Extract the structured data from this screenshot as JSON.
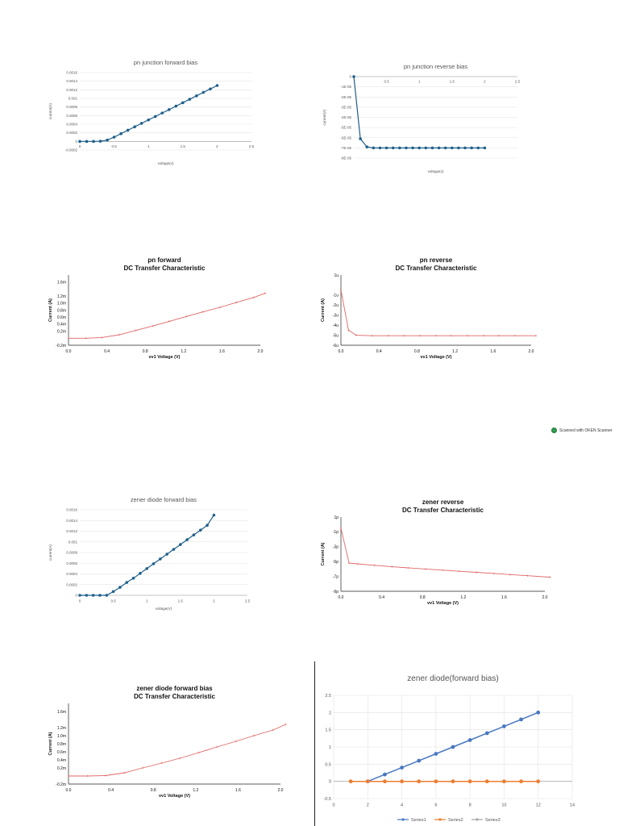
{
  "scanner": {
    "label": "Scanned with OKEN Scanner"
  },
  "chart_data": [
    {
      "id": "c1",
      "type": "line",
      "style": "excel",
      "title": [
        "pn junction forward bias"
      ],
      "xlabel": "voltage(v)",
      "ylabel": "current(A)",
      "xlim": [
        0,
        2.5
      ],
      "ylim": [
        -0.0002,
        0.0016
      ],
      "xticks": [
        0,
        0.5,
        1,
        1.5,
        2,
        2.5
      ],
      "xtick_labels": [
        "0",
        "0.5",
        "1",
        "1.5",
        "2",
        "2.5"
      ],
      "yticks": [
        -0.0002,
        0,
        0.0002,
        0.0004,
        0.0006,
        0.0008,
        0.001,
        0.0012,
        0.0014,
        0.0016
      ],
      "ytick_labels": [
        "-0.0002",
        "0",
        "0.0002",
        "0.0004",
        "0.0006",
        "0.0008",
        "0.001",
        "0.0012",
        "0.0014",
        "0.0016"
      ],
      "grid": true,
      "series": [
        {
          "color": "#1f5f8b",
          "x": [
            0,
            0.1,
            0.2,
            0.3,
            0.4,
            0.5,
            0.6,
            0.7,
            0.8,
            0.9,
            1.0,
            1.1,
            1.2,
            1.3,
            1.4,
            1.5,
            1.6,
            1.7,
            1.8,
            1.9,
            2.0
          ],
          "y": [
            0,
            0,
            0,
            5e-06,
            3e-05,
            0.0001,
            0.00018,
            0.00026,
            0.00034,
            0.00042,
            0.0005,
            0.00058,
            0.00066,
            0.00074,
            0.00082,
            0.0009,
            0.00098,
            0.00106,
            0.00114,
            0.00122,
            0.0013
          ]
        }
      ]
    },
    {
      "id": "c2",
      "type": "line",
      "style": "excel",
      "title": [
        "pn junction reverse bias"
      ],
      "xlabel": "voltage(v)",
      "ylabel": "current(A)",
      "xlim": [
        0,
        2.5
      ],
      "ylim": [
        -8,
        0
      ],
      "xticks": [
        0.5,
        1,
        1.5,
        2,
        2.5
      ],
      "xtick_labels": [
        "0.5",
        "1",
        "1.5",
        "2",
        "2.5"
      ],
      "x_axis_at_top": true,
      "yticks": [
        0,
        -1,
        -2,
        -3,
        -4,
        -5,
        -6,
        -7,
        -8
      ],
      "ytick_labels": [
        "0",
        "-1E-05",
        "-2E-05",
        "-3E-05",
        "-4E-05",
        "-5E-05",
        "-6E-05",
        "-7E-05",
        "-8E-05"
      ],
      "grid": true,
      "series": [
        {
          "color": "#1f5f8b",
          "x": [
            0,
            0.1,
            0.2,
            0.3,
            0.4,
            0.5,
            0.6,
            0.7,
            0.8,
            0.9,
            1.0,
            1.1,
            1.2,
            1.3,
            1.4,
            1.5,
            1.6,
            1.7,
            1.8,
            1.9,
            2.0
          ],
          "y": [
            0,
            -6.1,
            -6.9,
            -7,
            -7,
            -7,
            -7,
            -7,
            -7,
            -7,
            -7,
            -7,
            -7,
            -7,
            -7,
            -7,
            -7,
            -7,
            -7,
            -7,
            -7
          ]
        }
      ]
    },
    {
      "id": "c3",
      "type": "line",
      "style": "spice",
      "title": [
        "pn forward",
        "DC Transfer Characteristic"
      ],
      "xlabel": "vv1 Voltage (V)",
      "ylabel": "Current (A)",
      "xlim": [
        0,
        2.0
      ],
      "ylim": [
        -0.2,
        1.8
      ],
      "xticks": [
        0,
        0.4,
        0.8,
        1.2,
        1.6,
        2.0
      ],
      "xtick_labels": [
        "0.0",
        "0.4",
        "0.8",
        "1.2",
        "1.6",
        "2.0"
      ],
      "yticks": [
        -0.2,
        0.2,
        0.4,
        0.6,
        0.8,
        1.0,
        1.2,
        1.6
      ],
      "ytick_labels": [
        "-0.2m",
        "0.2m",
        "0.4m",
        "0.6m",
        "0.8m",
        "1.0m",
        "1.2m",
        "1.6m"
      ],
      "grid": false,
      "series": [
        {
          "color": "#e06666",
          "x": [
            0,
            0.18,
            0.35,
            0.53,
            0.7,
            0.88,
            1.05,
            1.23,
            1.4,
            1.58,
            1.75,
            1.93,
            2.05
          ],
          "y": [
            0,
            0,
            0.02,
            0.1,
            0.22,
            0.35,
            0.48,
            0.62,
            0.75,
            0.88,
            1.02,
            1.16,
            1.28
          ]
        }
      ]
    },
    {
      "id": "c4",
      "type": "line",
      "style": "spice",
      "title": [
        "pn reverse",
        "DC Transfer Characteristic"
      ],
      "xlabel": "vv1 Voltage (V)",
      "ylabel": "Current (A)",
      "xlim": [
        0,
        2.0
      ],
      "ylim": [
        -6,
        1
      ],
      "xticks": [
        0,
        0.4,
        0.8,
        1.2,
        1.6,
        2.0
      ],
      "xtick_labels": [
        "0.0",
        "0.4",
        "0.8",
        "1.2",
        "1.6",
        "2.0"
      ],
      "yticks": [
        1,
        -1,
        -2,
        -3,
        -4,
        -5,
        -6
      ],
      "ytick_labels": [
        "1u",
        "-1u",
        "-2u",
        "-3u",
        "-4u",
        "-5u",
        "-6u"
      ],
      "grid": false,
      "series": [
        {
          "color": "#e06666",
          "x": [
            0,
            0.08,
            0.16,
            0.33,
            0.5,
            0.66,
            0.83,
            1.0,
            1.16,
            1.33,
            1.5,
            1.66,
            1.83,
            2.05
          ],
          "y": [
            -0.5,
            -4.5,
            -5,
            -5.05,
            -5.05,
            -5.05,
            -5.05,
            -5.05,
            -5.05,
            -5.05,
            -5.05,
            -5.05,
            -5.05,
            -5.05
          ]
        }
      ]
    },
    {
      "id": "c5",
      "type": "line",
      "style": "excel",
      "title": [
        "zener diode forward bias"
      ],
      "xlabel": "voltage(V)",
      "ylabel": "current(A)",
      "xlim": [
        0,
        2.5
      ],
      "ylim": [
        0,
        0.0016
      ],
      "xticks": [
        0,
        0.5,
        1,
        1.5,
        2,
        2.5
      ],
      "xtick_labels": [
        "0",
        "0.5",
        "1",
        "1.5",
        "2",
        "2.5"
      ],
      "yticks": [
        0,
        0.0002,
        0.0004,
        0.0006,
        0.0008,
        0.001,
        0.0012,
        0.0014,
        0.0016
      ],
      "ytick_labels": [
        "0",
        "0.0002",
        "0.0004",
        "0.0006",
        "0.0008",
        "0.001",
        "0.0012",
        "0.0014",
        "0.0016"
      ],
      "grid": true,
      "series": [
        {
          "color": "#1f5f8b",
          "x": [
            0,
            0.1,
            0.2,
            0.3,
            0.4,
            0.5,
            0.6,
            0.7,
            0.8,
            0.9,
            1.0,
            1.1,
            1.2,
            1.3,
            1.4,
            1.5,
            1.6,
            1.7,
            1.8,
            1.9,
            2.0
          ],
          "y": [
            0,
            0,
            0,
            0,
            0,
            7e-05,
            0.00015,
            0.00024,
            0.00032,
            0.00041,
            0.0005,
            0.00059,
            0.00068,
            0.00077,
            0.00086,
            0.00095,
            0.00104,
            0.00113,
            0.00122,
            0.00131,
            0.0015
          ]
        }
      ]
    },
    {
      "id": "c6",
      "type": "line",
      "style": "spice",
      "title": [
        "zener reverse",
        "DC Transfer Characteristic"
      ],
      "xlabel": "vv1 Voltage (V)",
      "ylabel": "Current (A)",
      "xlim": [
        0,
        2.0
      ],
      "ylim": [
        -9,
        1
      ],
      "xticks": [
        0,
        0.4,
        0.8,
        1.2,
        1.6,
        2.0
      ],
      "xtick_labels": [
        "0.0",
        "0.4",
        "0.8",
        "1.2",
        "1.6",
        "2.0"
      ],
      "yticks": [
        1,
        -1,
        -3,
        -5,
        -7,
        -9
      ],
      "ytick_labels": [
        "1p",
        "-1p",
        "-3p",
        "-5p",
        "-7p",
        "-9p"
      ],
      "grid": false,
      "series": [
        {
          "color": "#e06666",
          "x": [
            0,
            0.08,
            0.16,
            0.33,
            0.5,
            0.66,
            0.83,
            1.0,
            1.16,
            1.33,
            1.5,
            1.66,
            1.83,
            2.05
          ],
          "y": [
            -0.5,
            -5.2,
            -5.3,
            -5.5,
            -5.7,
            -5.85,
            -6.0,
            -6.15,
            -6.3,
            -6.45,
            -6.6,
            -6.75,
            -6.9,
            -7.1
          ]
        }
      ]
    },
    {
      "id": "c7",
      "type": "line",
      "style": "spice",
      "title": [
        "zener diode forward bias",
        "DC Transfer Characteristic"
      ],
      "xlabel": "vv1 Voltage (V)",
      "ylabel": "Current (A)",
      "xlim": [
        0,
        2.0
      ],
      "ylim": [
        -0.2,
        1.8
      ],
      "xticks": [
        0,
        0.4,
        0.8,
        1.2,
        1.6,
        2.0
      ],
      "xtick_labels": [
        "0.0",
        "0.4",
        "0.8",
        "1.2",
        "1.6",
        "2.0"
      ],
      "yticks": [
        -0.2,
        0.2,
        0.4,
        0.6,
        0.8,
        1.0,
        1.2,
        1.6
      ],
      "ytick_labels": [
        "-0.2m",
        "0.2m",
        "0.4m",
        "0.6m",
        "0.8m",
        "1.0m",
        "1.2m",
        "1.6m"
      ],
      "grid": false,
      "series": [
        {
          "color": "#e06666",
          "x": [
            0,
            0.18,
            0.35,
            0.53,
            0.7,
            0.88,
            1.05,
            1.23,
            1.4,
            1.58,
            1.75,
            1.93,
            2.05
          ],
          "y": [
            0,
            0,
            0.01,
            0.08,
            0.2,
            0.32,
            0.44,
            0.58,
            0.72,
            0.86,
            1.0,
            1.14,
            1.28
          ]
        }
      ]
    },
    {
      "id": "c8",
      "type": "line",
      "style": "excel-large",
      "title": [
        "zener diode(forward bias)"
      ],
      "xlabel": "",
      "ylabel": "",
      "xlim": [
        0,
        14
      ],
      "ylim": [
        -0.5,
        2.5
      ],
      "xticks": [
        0,
        2,
        4,
        6,
        8,
        10,
        12,
        14
      ],
      "xtick_labels": [
        "0",
        "2",
        "4",
        "6",
        "8",
        "10",
        "12",
        "14"
      ],
      "yticks": [
        -0.5,
        0,
        0.5,
        1,
        1.5,
        2,
        2.5
      ],
      "ytick_labels": [
        "-0.5",
        "0",
        "0.5",
        "1",
        "1.5",
        "2",
        "2.5"
      ],
      "grid": true,
      "legend": "bottom",
      "series": [
        {
          "name": "Series1",
          "color": "#4a78c2",
          "x": [
            2,
            3,
            4,
            5,
            6,
            7,
            8,
            9,
            10,
            11,
            12
          ],
          "y": [
            0,
            0.2,
            0.4,
            0.6,
            0.8,
            1.0,
            1.2,
            1.4,
            1.6,
            1.8,
            2.0
          ]
        },
        {
          "name": "Series2",
          "color": "#ed7d31",
          "x": [
            1,
            2,
            3,
            4,
            5,
            6,
            7,
            8,
            9,
            10,
            11,
            12
          ],
          "y": [
            0,
            0,
            0,
            0,
            0,
            0,
            0,
            0,
            0,
            0,
            0,
            0
          ]
        },
        {
          "name": "Series3",
          "color": "#a5a5a5",
          "x": [],
          "y": []
        }
      ]
    }
  ]
}
